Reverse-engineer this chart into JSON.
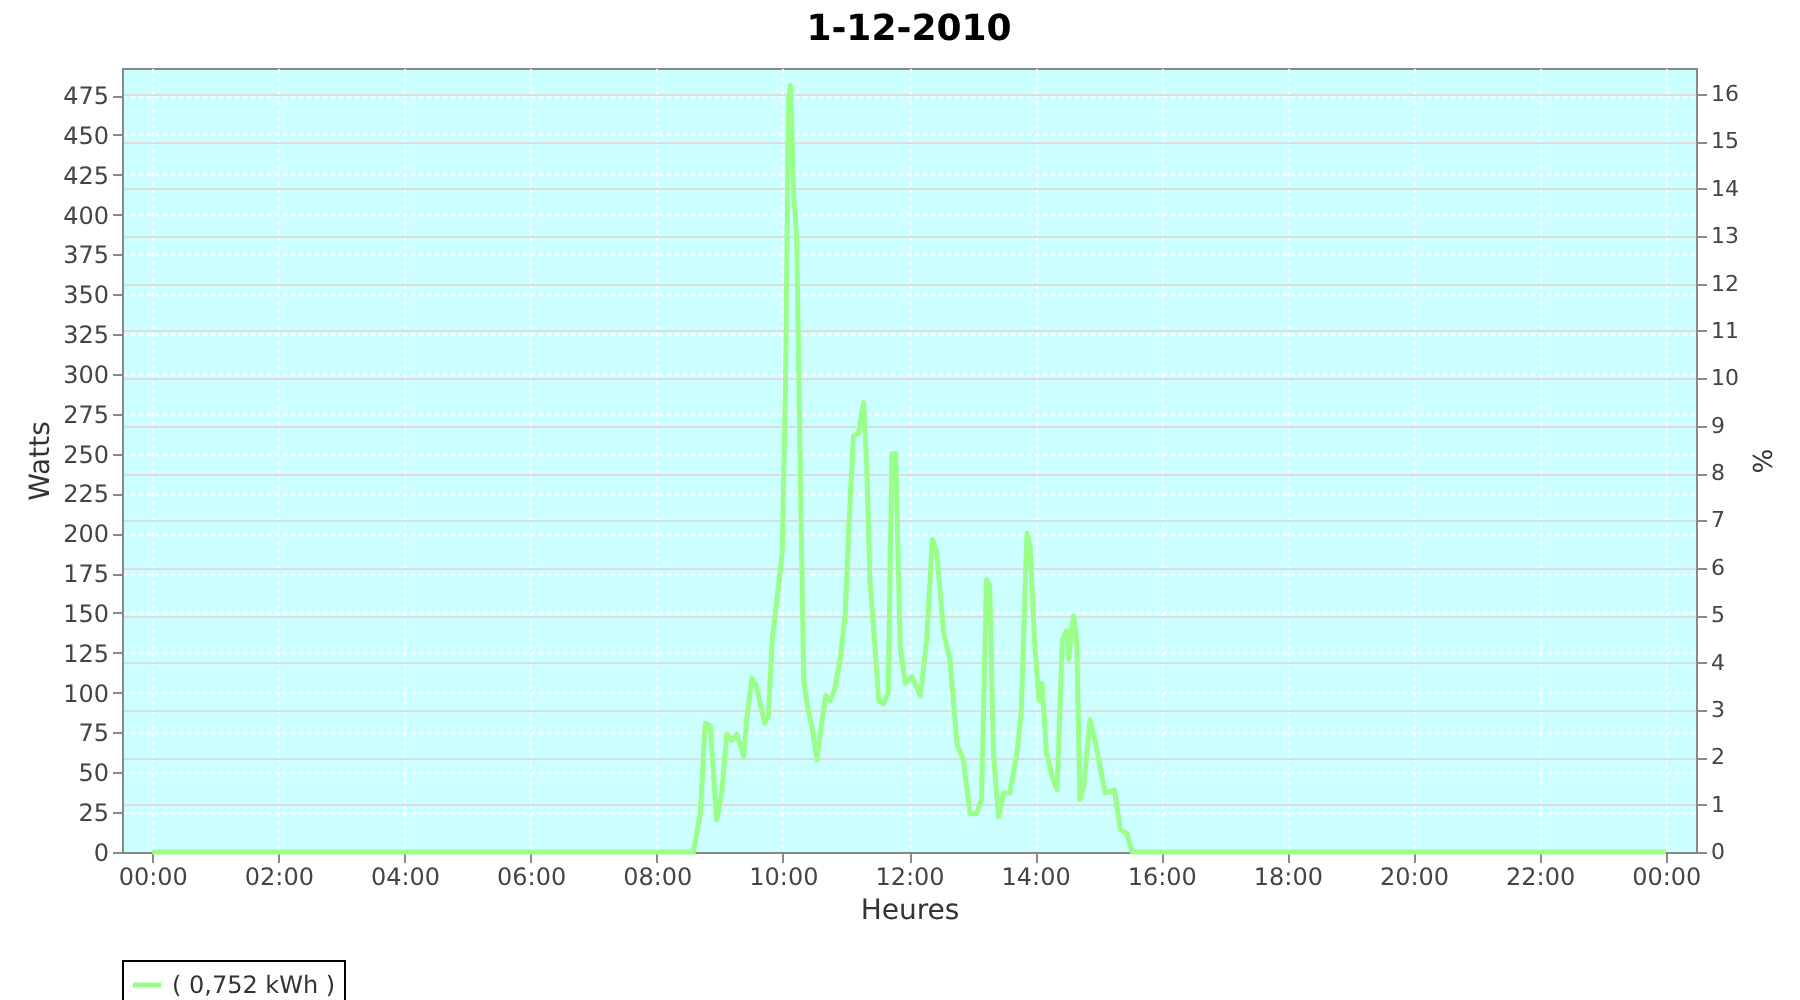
{
  "chart_data": {
    "type": "line",
    "title": "1-12-2010",
    "xlabel": "Heures",
    "ylabel": "Watts",
    "y2label": "%",
    "xlim": [
      -0.48,
      24.48
    ],
    "xticks": [
      {
        "value": 0,
        "label": "00:00"
      },
      {
        "value": 2,
        "label": "02:00"
      },
      {
        "value": 4,
        "label": "04:00"
      },
      {
        "value": 6,
        "label": "06:00"
      },
      {
        "value": 8,
        "label": "08:00"
      },
      {
        "value": 10,
        "label": "10:00"
      },
      {
        "value": 12,
        "label": "12:00"
      },
      {
        "value": 14,
        "label": "14:00"
      },
      {
        "value": 16,
        "label": "16:00"
      },
      {
        "value": 18,
        "label": "18:00"
      },
      {
        "value": 20,
        "label": "20:00"
      },
      {
        "value": 22,
        "label": "22:00"
      },
      {
        "value": 24,
        "label": "00:00"
      }
    ],
    "ylim": [
      0,
      492
    ],
    "yticks": [
      0,
      25,
      50,
      75,
      100,
      125,
      150,
      175,
      200,
      225,
      250,
      275,
      300,
      325,
      350,
      375,
      400,
      425,
      450,
      475
    ],
    "y2lim": [
      0,
      16.55
    ],
    "y2ticks": [
      0,
      1,
      2,
      3,
      4,
      5,
      6,
      7,
      8,
      9,
      10,
      11,
      12,
      13,
      14,
      15,
      16
    ],
    "grid": true,
    "legend": "bottom",
    "line_style": "solid",
    "series": [
      {
        "name": "( 0,752 kWh )",
        "color": "#99ff88",
        "x": [
          0,
          8.5,
          8.58,
          8.69,
          8.77,
          8.85,
          8.95,
          9.03,
          9.11,
          9.19,
          9.27,
          9.38,
          9.43,
          9.51,
          9.58,
          9.71,
          9.77,
          9.83,
          9.93,
          9.99,
          10.04,
          10.09,
          10.12,
          10.17,
          10.22,
          10.27,
          10.33,
          10.4,
          10.46,
          10.54,
          10.59,
          10.68,
          10.75,
          10.82,
          10.91,
          10.99,
          11.07,
          11.12,
          11.2,
          11.28,
          11.33,
          11.38,
          11.46,
          11.52,
          11.59,
          11.67,
          11.73,
          11.79,
          11.86,
          11.94,
          12.05,
          12.18,
          12.28,
          12.37,
          12.44,
          12.55,
          12.65,
          12.76,
          12.86,
          12.97,
          13.07,
          13.15,
          13.23,
          13.28,
          13.34,
          13.42,
          13.5,
          13.6,
          13.71,
          13.78,
          13.87,
          13.92,
          13.99,
          14.06,
          14.11,
          14.18,
          14.29,
          14.35,
          14.43,
          14.5,
          14.53,
          14.61,
          14.66,
          14.71,
          14.77,
          14.87,
          14.97,
          15.11,
          15.26,
          15.35,
          15.45,
          15.54,
          24
        ],
        "values": [
          0,
          0,
          0,
          24,
          81,
          79,
          20,
          37,
          74,
          70,
          74,
          60,
          85,
          109,
          104,
          81,
          85,
          133,
          167,
          188,
          288,
          472,
          481,
          414,
          384,
          255,
          108,
          89,
          79,
          58,
          74,
          98,
          95,
          102,
          121,
          150,
          225,
          261,
          263,
          282,
          242,
          171,
          129,
          95,
          93,
          100,
          250,
          250,
          129,
          106,
          110,
          98,
          133,
          196,
          188,
          137,
          121,
          68,
          58,
          24,
          24,
          33,
          171,
          167,
          62,
          22,
          37,
          37,
          62,
          87,
          200,
          192,
          133,
          95,
          106,
          62,
          45,
          39,
          133,
          139,
          121,
          148,
          133,
          33,
          41,
          83,
          66,
          37,
          39,
          14,
          12,
          0,
          0
        ]
      }
    ]
  }
}
